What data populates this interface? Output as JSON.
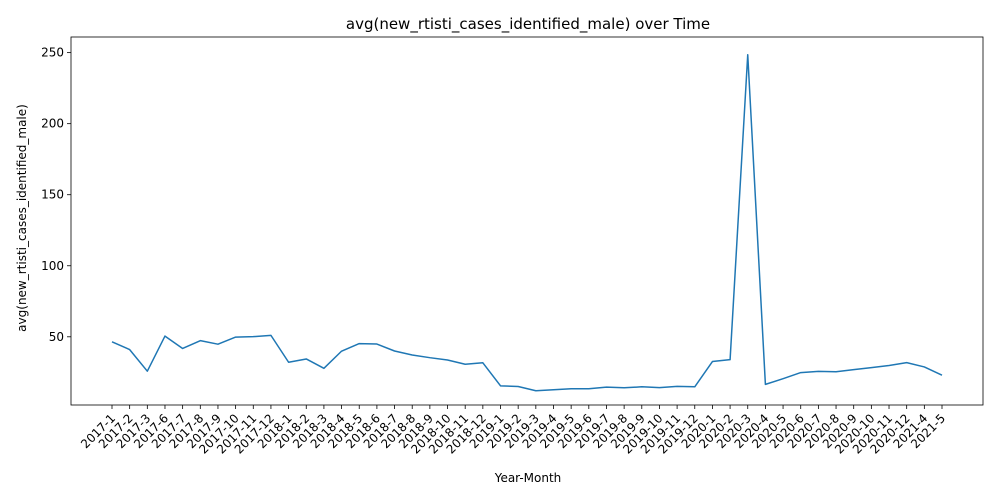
{
  "chart_data": {
    "type": "line",
    "title": "avg(new_rtisti_cases_identified_male) over Time",
    "xlabel": "Year-Month",
    "ylabel": "avg(new_rtisti_cases_identified_male)",
    "categories": [
      "2017-1",
      "2017-2",
      "2017-3",
      "2017-6",
      "2017-7",
      "2017-8",
      "2017-9",
      "2017-10",
      "2017-11",
      "2017-12",
      "2018-1",
      "2018-2",
      "2018-3",
      "2018-4",
      "2018-5",
      "2018-6",
      "2018-7",
      "2018-8",
      "2018-9",
      "2018-10",
      "2018-11",
      "2018-12",
      "2019-1",
      "2019-2",
      "2019-3",
      "2019-4",
      "2019-5",
      "2019-6",
      "2019-7",
      "2019-8",
      "2019-9",
      "2019-10",
      "2019-11",
      "2019-12",
      "2020-1",
      "2020-2",
      "2020-3",
      "2020-4",
      "2020-5",
      "2020-6",
      "2020-7",
      "2020-8",
      "2020-9",
      "2020-10",
      "2020-11",
      "2020-12",
      "2021-4",
      "2021-5"
    ],
    "series": [
      {
        "values": [
          46.5,
          41,
          25.8,
          50.5,
          41.8,
          47.3,
          44.8,
          49.8,
          50.1,
          51,
          32.1,
          34.4,
          27.8,
          39.9,
          45.2,
          44.9,
          40,
          37.2,
          35.3,
          33.7,
          30.7,
          31.7,
          15.5,
          15,
          12,
          12.7,
          13.4,
          13.4,
          14.6,
          14.1,
          14.8,
          14.2,
          15.1,
          14.8,
          32.6,
          33.9,
          248.5,
          16.5,
          20.5,
          24.8,
          25.7,
          25.4,
          26.9,
          28.3,
          29.8,
          31.8,
          28.8,
          23
        ]
      }
    ],
    "ylim": [
      2,
      261
    ],
    "yticks": [
      50,
      100,
      150,
      200,
      250
    ],
    "grid": false,
    "line_color": "#1f77b4"
  }
}
